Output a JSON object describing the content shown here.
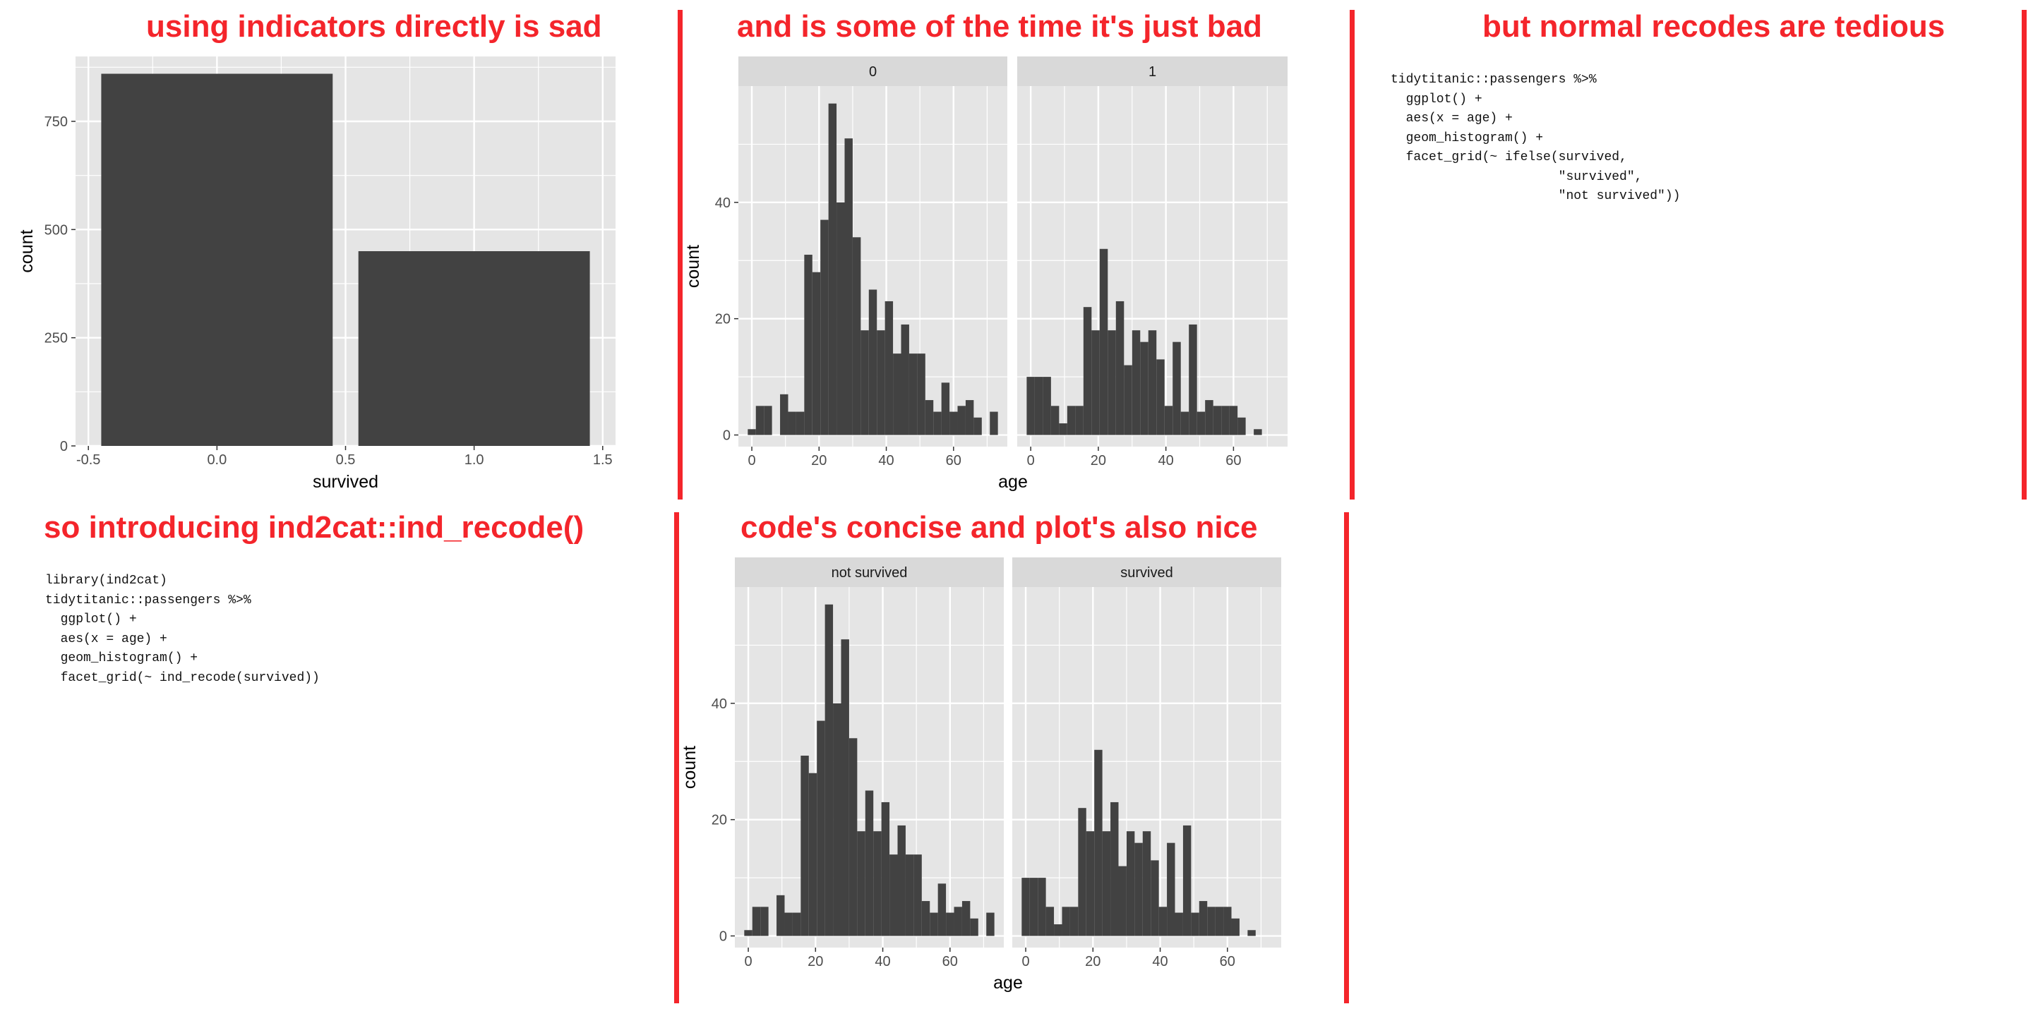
{
  "panels": {
    "top_left_title": "using indicators directly is sad",
    "top_middle_title": "and is some of the time it's just bad",
    "top_right_title": "but normal recodes are tedious",
    "bottom_left_title": "so introducing ind2cat::ind_recode()",
    "bottom_middle_title": "code's concise and plot's also nice"
  },
  "code": {
    "ifelse_snippet": "tidytitanic::passengers %>%\n  ggplot() +\n  aes(x = age) +\n  geom_histogram() +\n  facet_grid(~ ifelse(survived,\n                      \"survived\",\n                      \"not survived\"))",
    "ind_recode_snippet": "library(ind2cat)\ntidytitanic::passengers %>%\n  ggplot() +\n  aes(x = age) +\n  geom_histogram() +\n  facet_grid(~ ind_recode(survived))"
  },
  "colors": {
    "accent": "#f4252b",
    "panel_background": "#e5e5e5",
    "gridline": "#ffffff",
    "bar_fill": "#424242",
    "strip_background": "#d9d9d9"
  },
  "chart_data": [
    {
      "type": "bar",
      "categories": [
        0,
        1
      ],
      "values": [
        860,
        450
      ],
      "xlabel": "survived",
      "ylabel": "count",
      "xlim": [
        -0.55,
        1.55
      ],
      "xticks": [
        -0.5,
        0.0,
        0.5,
        1.0,
        1.5
      ],
      "xtick_labels": [
        "-0.5",
        "0.0",
        "0.5",
        "1.0",
        "1.5"
      ],
      "ylim": [
        0,
        900
      ],
      "yticks": [
        0,
        250,
        500,
        750
      ],
      "grid": true
    },
    {
      "type": "bar",
      "subtype": "faceted histogram",
      "xlabel": "age",
      "ylabel": "count",
      "xlim": [
        -4,
        76
      ],
      "ylim": [
        -2,
        60
      ],
      "xticks": [
        0,
        20,
        40,
        60
      ],
      "yticks": [
        0,
        20,
        40
      ],
      "bin_start": -1.2,
      "bin_width": 2.4,
      "grid": true,
      "facets": [
        {
          "label": "0",
          "counts": [
            1,
            5,
            5,
            0,
            7,
            4,
            4,
            31,
            28,
            37,
            57,
            40,
            51,
            34,
            18,
            25,
            18,
            23,
            14,
            19,
            14,
            14,
            6,
            4,
            9,
            4,
            5,
            6,
            3,
            0,
            4
          ]
        },
        {
          "label": "1",
          "counts": [
            10,
            10,
            10,
            5,
            2,
            5,
            5,
            22,
            18,
            32,
            18,
            23,
            12,
            18,
            16,
            18,
            13,
            5,
            16,
            4,
            19,
            4,
            6,
            5,
            5,
            5,
            3,
            0,
            1
          ]
        }
      ]
    },
    {
      "type": "bar",
      "subtype": "faceted histogram",
      "xlabel": "age",
      "ylabel": "count",
      "xlim": [
        -4,
        76
      ],
      "ylim": [
        -2,
        60
      ],
      "xticks": [
        0,
        20,
        40,
        60
      ],
      "yticks": [
        0,
        20,
        40
      ],
      "bin_start": -1.2,
      "bin_width": 2.4,
      "grid": true,
      "facets": [
        {
          "label": "not survived",
          "counts": [
            1,
            5,
            5,
            0,
            7,
            4,
            4,
            31,
            28,
            37,
            57,
            40,
            51,
            34,
            18,
            25,
            18,
            23,
            14,
            19,
            14,
            14,
            6,
            4,
            9,
            4,
            5,
            6,
            3,
            0,
            4
          ]
        },
        {
          "label": "survived",
          "counts": [
            10,
            10,
            10,
            5,
            2,
            5,
            5,
            22,
            18,
            32,
            18,
            23,
            12,
            18,
            16,
            18,
            13,
            5,
            16,
            4,
            19,
            4,
            6,
            5,
            5,
            5,
            3,
            0,
            1
          ]
        }
      ]
    }
  ]
}
